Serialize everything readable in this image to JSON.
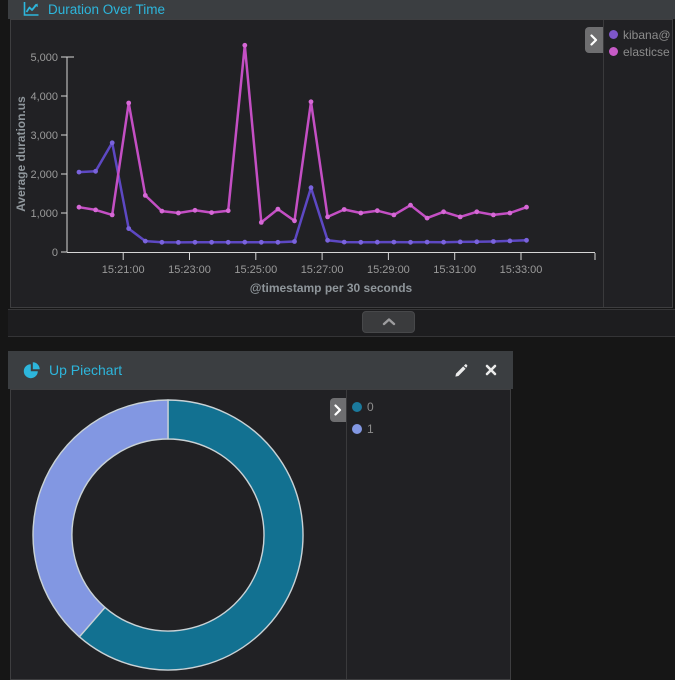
{
  "colors": {
    "accent_cyan": "#2db6dc",
    "page_bg": "#161616",
    "panel_header_bg": "#3b3e41",
    "chart_bg": "#212124",
    "axis_line": "#d6d6d6",
    "axis_text": "#9a9a9a",
    "axis_title_text": "#8f969b",
    "legend_text": "#8c8c8c"
  },
  "duration_panel": {
    "icon": "line-chart-icon",
    "title": "Duration Over Time",
    "legend_toggle_icon": "chevron-right-icon",
    "legend": [
      {
        "label": "kibana@",
        "color": "#7e57c9"
      },
      {
        "label": "elasticse",
        "color": "#c75bc7"
      }
    ]
  },
  "collapse": {
    "icon": "chevron-up-icon"
  },
  "pie_panel": {
    "icon": "pie-chart-icon",
    "title": "Up Piechart",
    "edit_icon": "pencil-icon",
    "close_icon": "close-icon",
    "legend_toggle_icon": "chevron-right-icon",
    "legend": [
      {
        "label": "0",
        "color": "#1b7a9d"
      },
      {
        "label": "1",
        "color": "#8297e2"
      }
    ]
  },
  "chart_data": [
    {
      "type": "line",
      "title": "Duration Over Time",
      "xlabel": "@timestamp per 30 seconds",
      "ylabel": "Average duration.us",
      "x_interval_seconds": 30,
      "x": [
        "15:19:40",
        "15:20:10",
        "15:20:40",
        "15:21:10",
        "15:21:40",
        "15:22:10",
        "15:22:40",
        "15:23:10",
        "15:23:40",
        "15:24:10",
        "15:24:40",
        "15:25:10",
        "15:25:40",
        "15:26:10",
        "15:26:40",
        "15:27:10",
        "15:27:40",
        "15:28:10",
        "15:28:40",
        "15:29:10",
        "15:29:40",
        "15:30:10",
        "15:30:40",
        "15:31:10",
        "15:31:40",
        "15:32:10",
        "15:32:40",
        "15:33:10"
      ],
      "x_tick_labels": [
        "15:21:00",
        "15:23:00",
        "15:25:00",
        "15:27:00",
        "15:29:00",
        "15:31:00",
        "15:33:00"
      ],
      "x_tick_indices": [
        2.667,
        6.667,
        10.667,
        14.667,
        18.667,
        22.667,
        26.667
      ],
      "y_tick_labels": [
        "0",
        "1,000",
        "2,000",
        "3,000",
        "4,000",
        "5,000"
      ],
      "y_tick_values": [
        0,
        1000,
        2000,
        3000,
        4000,
        5000
      ],
      "ylim": [
        0,
        5450
      ],
      "grid": false,
      "legend_position": "right",
      "series": [
        {
          "name": "kibana@",
          "color": "#5d48c3",
          "dot_color": "#7a63dd",
          "values": [
            2050,
            2070,
            2800,
            600,
            280,
            250,
            245,
            250,
            248,
            250,
            252,
            248,
            250,
            270,
            1650,
            300,
            255,
            250,
            252,
            255,
            250,
            255,
            252,
            258,
            262,
            270,
            285,
            300
          ]
        },
        {
          "name": "elasticse",
          "color": "#c44fc4",
          "dot_color": "#d668d6",
          "values": [
            1150,
            1080,
            950,
            3820,
            1450,
            1050,
            1000,
            1070,
            1010,
            1060,
            5300,
            760,
            1100,
            800,
            3850,
            900,
            1090,
            1000,
            1060,
            950,
            1200,
            870,
            1030,
            900,
            1030,
            950,
            1000,
            1150
          ]
        }
      ]
    },
    {
      "type": "pie",
      "title": "Up Piechart",
      "donut": true,
      "slice_border_color": "#c9d2d6",
      "legend_position": "right",
      "slices": [
        {
          "label": "0",
          "value": 61.4,
          "color": "#127191"
        },
        {
          "label": "1",
          "value": 38.6,
          "color": "#8297e2"
        }
      ]
    }
  ]
}
